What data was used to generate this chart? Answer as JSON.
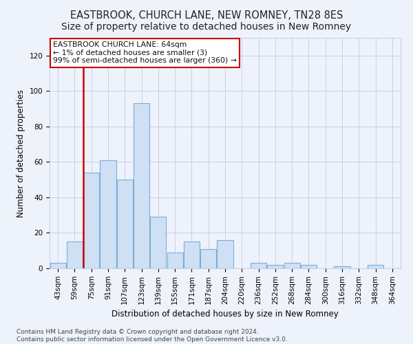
{
  "title": "EASTBROOK, CHURCH LANE, NEW ROMNEY, TN28 8ES",
  "subtitle": "Size of property relative to detached houses in New Romney",
  "xlabel": "Distribution of detached houses by size in New Romney",
  "ylabel": "Number of detached properties",
  "footer1": "Contains HM Land Registry data © Crown copyright and database right 2024.",
  "footer2": "Contains public sector information licensed under the Open Government Licence v3.0.",
  "categories": [
    "43sqm",
    "59sqm",
    "75sqm",
    "91sqm",
    "107sqm",
    "123sqm",
    "139sqm",
    "155sqm",
    "171sqm",
    "187sqm",
    "204sqm",
    "220sqm",
    "236sqm",
    "252sqm",
    "268sqm",
    "284sqm",
    "300sqm",
    "316sqm",
    "332sqm",
    "348sqm",
    "364sqm"
  ],
  "values": [
    3,
    15,
    54,
    61,
    50,
    93,
    29,
    9,
    15,
    11,
    16,
    0,
    3,
    2,
    3,
    2,
    0,
    1,
    0,
    2,
    0
  ],
  "bar_color": "#cfe0f5",
  "bar_edge_color": "#7aadd4",
  "annotation_box_text": "EASTBROOK CHURCH LANE: 64sqm\n← 1% of detached houses are smaller (3)\n99% of semi-detached houses are larger (360) →",
  "annotation_box_color": "white",
  "annotation_box_edge_color": "#cc0000",
  "red_line_x": 1.5,
  "ylim": [
    0,
    130
  ],
  "yticks": [
    0,
    20,
    40,
    60,
    80,
    100,
    120
  ],
  "bg_color": "#eef2fb",
  "grid_color": "#c8d0e8",
  "title_fontsize": 10.5,
  "axis_label_fontsize": 8.5,
  "tick_fontsize": 7.5,
  "footer_fontsize": 6.5
}
